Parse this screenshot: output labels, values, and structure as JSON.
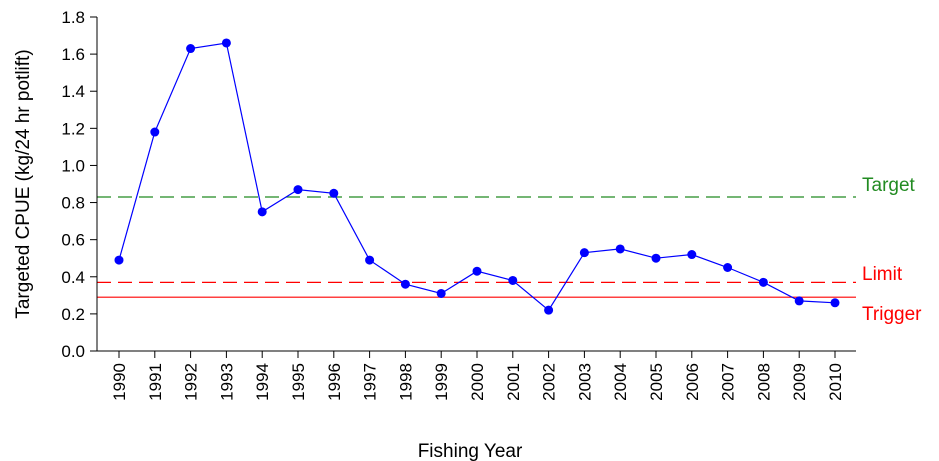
{
  "chart_data": {
    "type": "line",
    "xlabel": "Fishing Year",
    "ylabel": "Targeted CPUE (kg/24 hr potlift)",
    "ylim": [
      0,
      1.8
    ],
    "yticks": [
      "0.0",
      "0.2",
      "0.4",
      "0.6",
      "0.8",
      "1.0",
      "1.2",
      "1.4",
      "1.6",
      "1.8"
    ],
    "grid": false,
    "x": [
      "1990",
      "1991",
      "1992",
      "1993",
      "1994",
      "1995",
      "1996",
      "1997",
      "1998",
      "1999",
      "2000",
      "2001",
      "2002",
      "2003",
      "2004",
      "2005",
      "2006",
      "2007",
      "2008",
      "2009",
      "2010"
    ],
    "series": [
      {
        "values": [
          0.49,
          1.18,
          1.63,
          1.66,
          0.75,
          0.87,
          0.85,
          0.49,
          0.36,
          0.31,
          0.43,
          0.38,
          0.22,
          0.53,
          0.55,
          0.5,
          0.52,
          0.45,
          0.37,
          0.27,
          0.26
        ],
        "color": "#0000ff"
      }
    ],
    "reference_lines": [
      {
        "label": "Target",
        "value": 0.83,
        "color": "#228b22",
        "style": "dashed"
      },
      {
        "label": "Limit",
        "value": 0.37,
        "color": "#ff0000",
        "style": "dashed"
      },
      {
        "label": "Trigger",
        "value": 0.29,
        "color": "#ff0000",
        "style": "solid"
      }
    ]
  }
}
